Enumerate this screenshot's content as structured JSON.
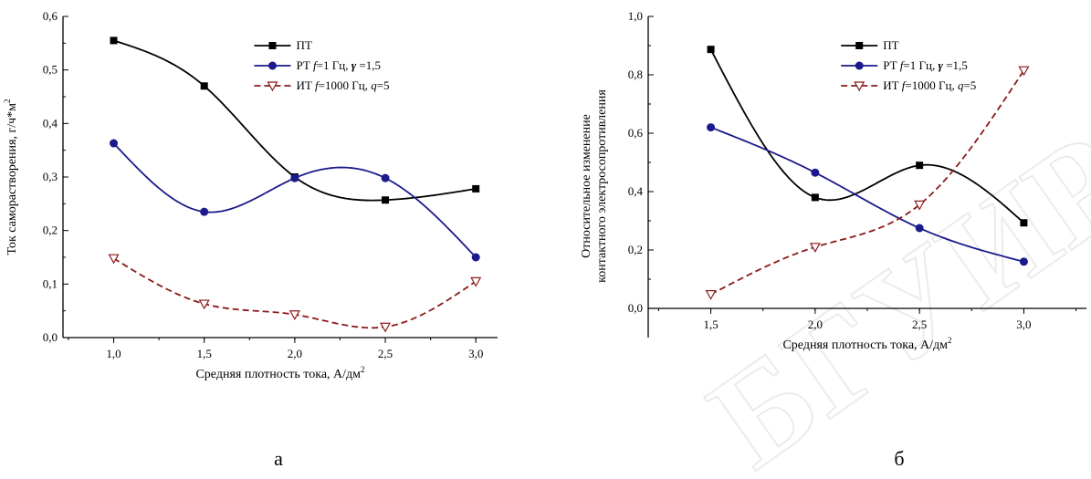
{
  "colors": {
    "pt": "#000000",
    "rt": "#1a1a8c",
    "it": "#8b1a1a",
    "watermark": "#c8c8c8"
  },
  "watermark": "БГУИР",
  "chart_data": [
    {
      "type": "line",
      "panel_label": "а",
      "title": "",
      "xlabel": "Средняя плотность тока, А/дм",
      "xlabel_sup": "2",
      "ylabel": "Ток саморастворения, г/ч*м",
      "ylabel_sup": "2",
      "xlim": [
        0.72,
        3.12
      ],
      "ylim": [
        0.0,
        0.6
      ],
      "x_ticks": [
        1.0,
        1.5,
        2.0,
        2.5,
        3.0
      ],
      "x_tick_labels": [
        "1,0",
        "1,5",
        "2,0",
        "2,5",
        "3,0"
      ],
      "y_ticks": [
        0.0,
        0.1,
        0.2,
        0.3,
        0.4,
        0.5,
        0.6
      ],
      "y_tick_labels": [
        "0,0",
        "0,1",
        "0,2",
        "0,3",
        "0,4",
        "0,5",
        "0,6"
      ],
      "legend_position": "top-right",
      "series": [
        {
          "key": "pt",
          "name": "ПТ",
          "marker": "square",
          "dash": false,
          "x": [
            1.0,
            1.5,
            2.0,
            2.5,
            3.0
          ],
          "y": [
            0.555,
            0.47,
            0.3,
            0.257,
            0.278
          ]
        },
        {
          "key": "rt",
          "name_parts": [
            "РТ ",
            "f",
            "=1 Гц, ",
            "γ",
            " =1,5"
          ],
          "marker": "circle",
          "dash": false,
          "x": [
            1.0,
            1.5,
            2.0,
            2.5,
            3.0
          ],
          "y": [
            0.363,
            0.235,
            0.298,
            0.298,
            0.15
          ]
        },
        {
          "key": "it",
          "name_parts": [
            "ИТ ",
            "f",
            "=1000 Гц, ",
            "q",
            "=5"
          ],
          "marker": "triangle-down",
          "dash": true,
          "x": [
            1.0,
            1.5,
            2.0,
            2.5,
            3.0
          ],
          "y": [
            0.148,
            0.063,
            0.043,
            0.02,
            0.105
          ]
        }
      ]
    },
    {
      "type": "line",
      "panel_label": "б",
      "title": "",
      "xlabel": "Средняя плотность тока, А/дм",
      "xlabel_sup": "2",
      "ylabel_lines": [
        "Относительное изменение",
        "контактного электросопротивления"
      ],
      "xlim": [
        1.2,
        3.3
      ],
      "ylim": [
        -0.1,
        1.0
      ],
      "x_ticks": [
        1.5,
        2.0,
        2.5,
        3.0
      ],
      "x_tick_labels": [
        "1,5",
        "2,0",
        "2,5",
        "3,0"
      ],
      "y_ticks": [
        0.0,
        0.2,
        0.4,
        0.6,
        0.8,
        1.0
      ],
      "y_tick_labels": [
        "0,0",
        "0,2",
        "0,4",
        "0,6",
        "0,8",
        "1,0"
      ],
      "legend_position": "top-right",
      "series": [
        {
          "key": "pt",
          "name": "ПТ",
          "marker": "square",
          "dash": false,
          "x": [
            1.5,
            2.0,
            2.5,
            3.0
          ],
          "y": [
            0.887,
            0.38,
            0.49,
            0.293
          ]
        },
        {
          "key": "rt",
          "name_parts": [
            "РТ ",
            "f",
            "=1 Гц, ",
            "γ",
            " =1,5"
          ],
          "marker": "circle",
          "dash": false,
          "x": [
            1.5,
            2.0,
            2.5,
            3.0
          ],
          "y": [
            0.62,
            0.465,
            0.275,
            0.16
          ]
        },
        {
          "key": "it",
          "name_parts": [
            "ИТ ",
            "f",
            "=1000 Гц, ",
            "q",
            "=5"
          ],
          "marker": "triangle-down",
          "dash": true,
          "x": [
            1.5,
            2.0,
            2.5,
            3.0
          ],
          "y": [
            0.048,
            0.21,
            0.355,
            0.815
          ]
        }
      ]
    }
  ]
}
